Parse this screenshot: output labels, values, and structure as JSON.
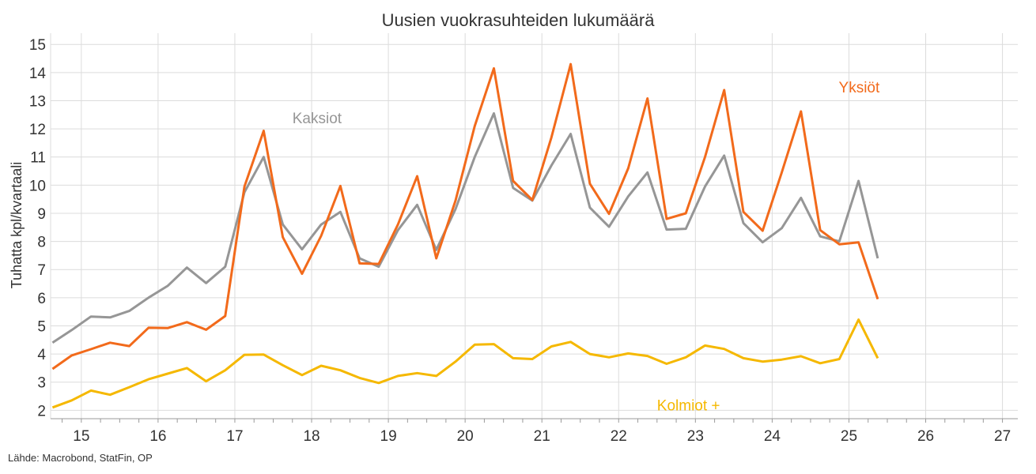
{
  "chart_data": {
    "type": "line",
    "title": "Uusien vuokrasuhteiden lukumäärä",
    "ylabel": "Tuhatta kpl/kvartaali",
    "xlabel": "",
    "source": "Lähde: Macrobond, StatFin, OP",
    "ylim": [
      1.7,
      15.4
    ],
    "xlim": [
      14.6,
      27.2
    ],
    "yticks": [
      2,
      3,
      4,
      5,
      6,
      7,
      8,
      9,
      10,
      11,
      12,
      13,
      14,
      15
    ],
    "xticks": [
      15,
      16,
      17,
      18,
      19,
      20,
      21,
      22,
      23,
      24,
      25,
      26,
      27
    ],
    "grid": true,
    "x": [
      14.625,
      14.875,
      15.125,
      15.375,
      15.625,
      15.875,
      16.125,
      16.375,
      16.625,
      16.875,
      17.125,
      17.375,
      17.625,
      17.875,
      18.125,
      18.375,
      18.625,
      18.875,
      19.125,
      19.375,
      19.625,
      19.875,
      20.125,
      20.375,
      20.625,
      20.875,
      21.125,
      21.375,
      21.625,
      21.875,
      22.125,
      22.375,
      22.625,
      22.875,
      23.125,
      23.375,
      23.625,
      23.875,
      24.125,
      24.375,
      24.625,
      24.875,
      25.125,
      25.375
    ],
    "series": [
      {
        "name": "Kaksiot",
        "color": "#969696",
        "values": [
          4.4,
          4.85,
          5.33,
          5.3,
          5.53,
          6.0,
          6.42,
          7.07,
          6.52,
          7.1,
          9.75,
          11.0,
          8.6,
          7.72,
          8.6,
          9.05,
          7.4,
          7.1,
          8.4,
          9.3,
          7.7,
          9.15,
          11.0,
          12.55,
          9.9,
          9.45,
          10.7,
          11.82,
          9.2,
          8.52,
          9.6,
          10.45,
          8.42,
          8.45,
          9.95,
          11.05,
          8.65,
          7.97,
          8.47,
          9.55,
          8.18,
          8.0,
          10.15,
          7.4
        ]
      },
      {
        "name": "Yksiöt",
        "color": "#f26a1b",
        "values": [
          3.47,
          3.95,
          4.17,
          4.4,
          4.28,
          4.93,
          4.92,
          5.13,
          4.86,
          5.35,
          9.95,
          11.93,
          8.15,
          6.85,
          8.2,
          9.97,
          7.22,
          7.2,
          8.6,
          10.32,
          7.4,
          9.45,
          12.1,
          14.15,
          10.15,
          9.47,
          11.7,
          14.3,
          10.05,
          8.98,
          10.6,
          13.08,
          8.8,
          9.0,
          11.0,
          13.38,
          9.05,
          8.38,
          10.45,
          12.62,
          8.4,
          7.9,
          7.97,
          5.95
        ]
      },
      {
        "name": "Kolmiot +",
        "color": "#f5b800",
        "values": [
          2.1,
          2.35,
          2.7,
          2.55,
          2.82,
          3.1,
          3.3,
          3.5,
          3.03,
          3.42,
          3.97,
          3.98,
          3.6,
          3.25,
          3.58,
          3.42,
          3.15,
          2.97,
          3.22,
          3.32,
          3.22,
          3.73,
          4.33,
          4.35,
          3.85,
          3.82,
          4.27,
          4.43,
          4.0,
          3.88,
          4.02,
          3.93,
          3.65,
          3.88,
          4.3,
          4.18,
          3.85,
          3.73,
          3.8,
          3.92,
          3.67,
          3.82,
          5.22,
          3.85
        ]
      }
    ]
  }
}
